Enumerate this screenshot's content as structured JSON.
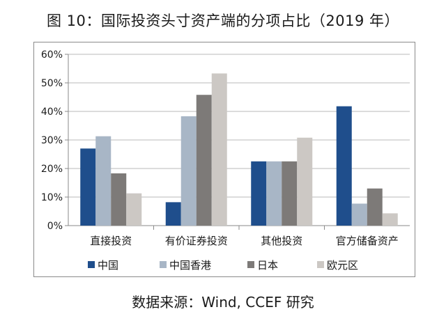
{
  "title": "图 10：国际投资头寸资产端的分项占比（2019 年）",
  "source": "数据来源：Wind, CCEF 研究",
  "chart_data": {
    "type": "bar",
    "categories": [
      "直接投资",
      "有价证券投资",
      "其他投资",
      "官方储备资产"
    ],
    "series": [
      {
        "name": "中国",
        "color": "#1f4e8c",
        "values": [
          27.0,
          8.2,
          22.5,
          41.8
        ]
      },
      {
        "name": "中国香港",
        "color": "#a8b6c6",
        "values": [
          31.3,
          38.3,
          22.5,
          7.7
        ]
      },
      {
        "name": "日本",
        "color": "#7d7a78",
        "values": [
          18.3,
          45.8,
          22.5,
          13.0
        ]
      },
      {
        "name": "欧元区",
        "color": "#ccc8c4",
        "values": [
          11.3,
          53.3,
          30.8,
          4.3
        ]
      }
    ],
    "ylim": [
      0,
      60
    ],
    "yticks": [
      "0%",
      "10%",
      "20%",
      "30%",
      "40%",
      "50%",
      "60%"
    ],
    "grid": true,
    "legend_position": "bottom"
  }
}
